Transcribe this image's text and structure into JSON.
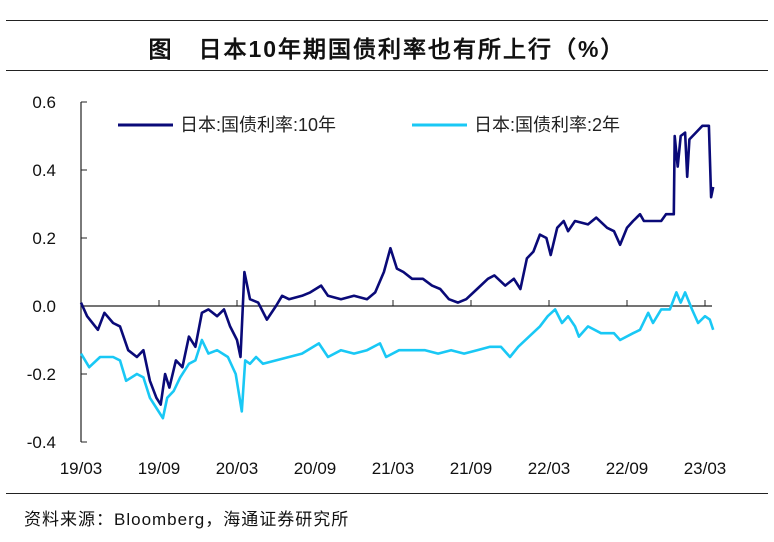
{
  "title": "图　日本10年期国债利率也有所上行（%）",
  "source": "资料来源：Bloomberg，海通证券研究所",
  "colors": {
    "series_10y": "#0a0a78",
    "series_2y": "#19c8f5"
  },
  "chart_data": {
    "type": "line",
    "title": "图　日本10年期国债利率也有所上行（%）",
    "xlabel": "",
    "ylabel": "",
    "ylim": [
      -0.4,
      0.6
    ],
    "yticks": [
      "0.6",
      "0.4",
      "0.2",
      "0.0",
      "-0.2",
      "-0.4"
    ],
    "xticks": [
      "19/03",
      "19/09",
      "20/03",
      "20/09",
      "21/03",
      "21/09",
      "22/03",
      "22/09",
      "23/03"
    ],
    "grid": false,
    "legend": "top",
    "series": [
      {
        "name": "日本:国债利率:10年",
        "points": [
          [
            "2019-03-01",
            0.01
          ],
          [
            "2019-03-15",
            -0.03
          ],
          [
            "2019-04-10",
            -0.07
          ],
          [
            "2019-04-25",
            -0.02
          ],
          [
            "2019-05-15",
            -0.05
          ],
          [
            "2019-06-01",
            -0.06
          ],
          [
            "2019-06-20",
            -0.13
          ],
          [
            "2019-07-10",
            -0.15
          ],
          [
            "2019-07-25",
            -0.13
          ],
          [
            "2019-08-10",
            -0.22
          ],
          [
            "2019-08-25",
            -0.27
          ],
          [
            "2019-09-05",
            -0.29
          ],
          [
            "2019-09-15",
            -0.2
          ],
          [
            "2019-09-25",
            -0.24
          ],
          [
            "2019-10-10",
            -0.16
          ],
          [
            "2019-10-25",
            -0.18
          ],
          [
            "2019-11-10",
            -0.09
          ],
          [
            "2019-11-25",
            -0.12
          ],
          [
            "2019-12-10",
            -0.02
          ],
          [
            "2019-12-25",
            -0.01
          ],
          [
            "2020-01-15",
            -0.03
          ],
          [
            "2020-02-01",
            -0.01
          ],
          [
            "2020-02-15",
            -0.06
          ],
          [
            "2020-03-01",
            -0.1
          ],
          [
            "2020-03-09",
            -0.15
          ],
          [
            "2020-03-18",
            0.1
          ],
          [
            "2020-04-01",
            0.02
          ],
          [
            "2020-04-20",
            0.01
          ],
          [
            "2020-05-10",
            -0.04
          ],
          [
            "2020-06-01",
            0.0
          ],
          [
            "2020-06-15",
            0.03
          ],
          [
            "2020-07-01",
            0.02
          ],
          [
            "2020-08-01",
            0.03
          ],
          [
            "2020-08-20",
            0.04
          ],
          [
            "2020-09-15",
            0.06
          ],
          [
            "2020-10-01",
            0.03
          ],
          [
            "2020-11-01",
            0.02
          ],
          [
            "2020-12-01",
            0.03
          ],
          [
            "2021-01-01",
            0.02
          ],
          [
            "2021-01-20",
            0.04
          ],
          [
            "2021-02-10",
            0.1
          ],
          [
            "2021-02-25",
            0.17
          ],
          [
            "2021-03-10",
            0.11
          ],
          [
            "2021-03-25",
            0.1
          ],
          [
            "2021-04-15",
            0.08
          ],
          [
            "2021-05-10",
            0.08
          ],
          [
            "2021-06-01",
            0.06
          ],
          [
            "2021-06-20",
            0.05
          ],
          [
            "2021-07-10",
            0.02
          ],
          [
            "2021-08-01",
            0.01
          ],
          [
            "2021-08-20",
            0.02
          ],
          [
            "2021-09-15",
            0.05
          ],
          [
            "2021-10-10",
            0.08
          ],
          [
            "2021-10-25",
            0.09
          ],
          [
            "2021-11-20",
            0.06
          ],
          [
            "2021-12-10",
            0.08
          ],
          [
            "2021-12-25",
            0.05
          ],
          [
            "2022-01-10",
            0.14
          ],
          [
            "2022-01-25",
            0.16
          ],
          [
            "2022-02-10",
            0.21
          ],
          [
            "2022-02-25",
            0.2
          ],
          [
            "2022-03-05",
            0.15
          ],
          [
            "2022-03-20",
            0.23
          ],
          [
            "2022-04-05",
            0.25
          ],
          [
            "2022-04-15",
            0.22
          ],
          [
            "2022-05-01",
            0.25
          ],
          [
            "2022-06-01",
            0.24
          ],
          [
            "2022-06-20",
            0.26
          ],
          [
            "2022-07-15",
            0.23
          ],
          [
            "2022-08-01",
            0.22
          ],
          [
            "2022-08-15",
            0.18
          ],
          [
            "2022-09-01",
            0.23
          ],
          [
            "2022-09-15",
            0.25
          ],
          [
            "2022-10-01",
            0.27
          ],
          [
            "2022-10-10",
            0.25
          ],
          [
            "2022-11-01",
            0.25
          ],
          [
            "2022-11-20",
            0.25
          ],
          [
            "2022-12-01",
            0.27
          ],
          [
            "2022-12-19",
            0.27
          ],
          [
            "2022-12-21",
            0.5
          ],
          [
            "2022-12-28",
            0.41
          ],
          [
            "2023-01-05",
            0.5
          ],
          [
            "2023-01-15",
            0.51
          ],
          [
            "2023-01-20",
            0.38
          ],
          [
            "2023-01-25",
            0.49
          ],
          [
            "2023-02-10",
            0.51
          ],
          [
            "2023-02-25",
            0.53
          ],
          [
            "2023-03-10",
            0.53
          ],
          [
            "2023-03-15",
            0.32
          ],
          [
            "2023-03-20",
            0.35
          ]
        ]
      },
      {
        "name": "日本:国债利率:2年",
        "points": [
          [
            "2019-03-01",
            -0.14
          ],
          [
            "2019-03-20",
            -0.18
          ],
          [
            "2019-04-15",
            -0.15
          ],
          [
            "2019-05-15",
            -0.15
          ],
          [
            "2019-06-01",
            -0.16
          ],
          [
            "2019-06-15",
            -0.22
          ],
          [
            "2019-07-10",
            -0.2
          ],
          [
            "2019-07-25",
            -0.21
          ],
          [
            "2019-08-10",
            -0.27
          ],
          [
            "2019-08-25",
            -0.3
          ],
          [
            "2019-09-10",
            -0.33
          ],
          [
            "2019-09-20",
            -0.27
          ],
          [
            "2019-10-05",
            -0.25
          ],
          [
            "2019-10-20",
            -0.21
          ],
          [
            "2019-11-10",
            -0.17
          ],
          [
            "2019-11-25",
            -0.16
          ],
          [
            "2019-12-10",
            -0.1
          ],
          [
            "2019-12-25",
            -0.14
          ],
          [
            "2020-01-15",
            -0.13
          ],
          [
            "2020-02-10",
            -0.15
          ],
          [
            "2020-02-28",
            -0.2
          ],
          [
            "2020-03-12",
            -0.31
          ],
          [
            "2020-03-20",
            -0.16
          ],
          [
            "2020-04-01",
            -0.17
          ],
          [
            "2020-04-15",
            -0.15
          ],
          [
            "2020-05-01",
            -0.17
          ],
          [
            "2020-06-01",
            -0.16
          ],
          [
            "2020-07-01",
            -0.15
          ],
          [
            "2020-08-01",
            -0.14
          ],
          [
            "2020-09-10",
            -0.11
          ],
          [
            "2020-10-01",
            -0.15
          ],
          [
            "2020-11-01",
            -0.13
          ],
          [
            "2020-12-01",
            -0.14
          ],
          [
            "2021-01-01",
            -0.13
          ],
          [
            "2021-02-01",
            -0.11
          ],
          [
            "2021-02-15",
            -0.15
          ],
          [
            "2021-03-15",
            -0.13
          ],
          [
            "2021-04-15",
            -0.13
          ],
          [
            "2021-05-15",
            -0.13
          ],
          [
            "2021-06-15",
            -0.14
          ],
          [
            "2021-07-15",
            -0.13
          ],
          [
            "2021-08-15",
            -0.14
          ],
          [
            "2021-09-15",
            -0.13
          ],
          [
            "2021-10-15",
            -0.12
          ],
          [
            "2021-11-10",
            -0.12
          ],
          [
            "2021-12-01",
            -0.15
          ],
          [
            "2021-12-20",
            -0.12
          ],
          [
            "2022-01-15",
            -0.09
          ],
          [
            "2022-02-10",
            -0.06
          ],
          [
            "2022-02-28",
            -0.03
          ],
          [
            "2022-03-15",
            -0.01
          ],
          [
            "2022-04-01",
            -0.05
          ],
          [
            "2022-04-15",
            -0.03
          ],
          [
            "2022-05-01",
            -0.06
          ],
          [
            "2022-05-10",
            -0.09
          ],
          [
            "2022-06-01",
            -0.06
          ],
          [
            "2022-07-01",
            -0.08
          ],
          [
            "2022-08-01",
            -0.08
          ],
          [
            "2022-08-15",
            -0.1
          ],
          [
            "2022-09-15",
            -0.08
          ],
          [
            "2022-10-01",
            -0.07
          ],
          [
            "2022-10-20",
            -0.02
          ],
          [
            "2022-11-01",
            -0.05
          ],
          [
            "2022-11-20",
            -0.01
          ],
          [
            "2022-12-10",
            -0.01
          ],
          [
            "2022-12-25",
            0.04
          ],
          [
            "2023-01-05",
            0.01
          ],
          [
            "2023-01-15",
            0.04
          ],
          [
            "2023-02-01",
            -0.01
          ],
          [
            "2023-02-15",
            -0.05
          ],
          [
            "2023-03-01",
            -0.03
          ],
          [
            "2023-03-12",
            -0.04
          ],
          [
            "2023-03-20",
            -0.07
          ]
        ]
      }
    ]
  }
}
